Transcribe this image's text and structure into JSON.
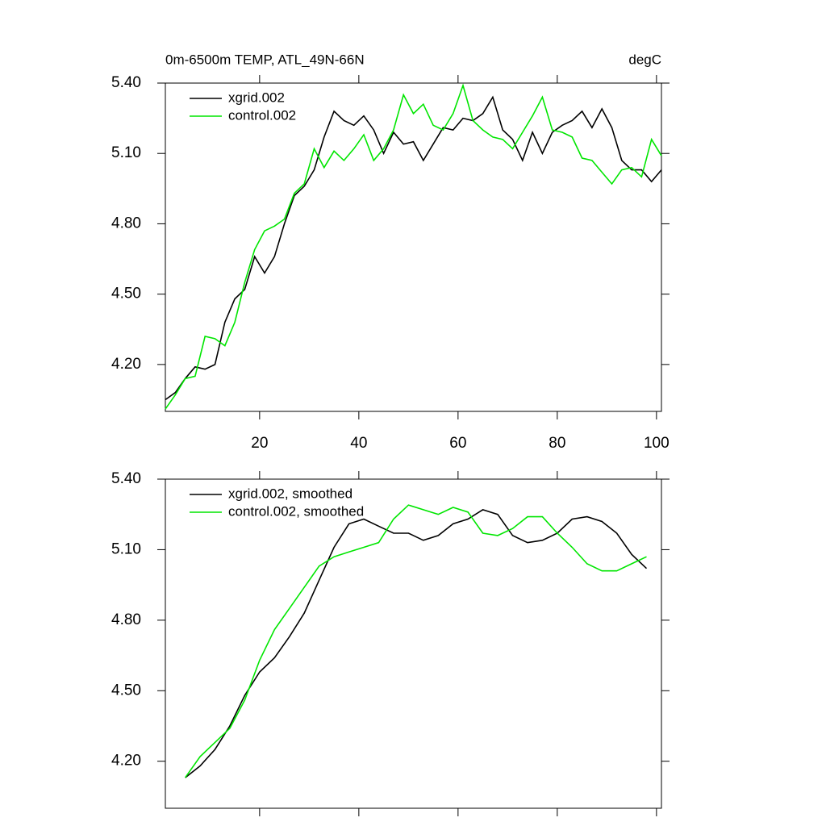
{
  "chart_data": [
    {
      "type": "line",
      "title": "0m-6500m TEMP, ATL_49N-66N",
      "units": "degC",
      "x": [
        1,
        3,
        5,
        7,
        9,
        11,
        13,
        15,
        17,
        19,
        21,
        23,
        25,
        27,
        29,
        31,
        33,
        35,
        37,
        39,
        41,
        43,
        45,
        47,
        49,
        51,
        53,
        55,
        57,
        59,
        61,
        63,
        65,
        67,
        69,
        71,
        73,
        75,
        77,
        79,
        81,
        83,
        85,
        87,
        89,
        91,
        93,
        95,
        97,
        99,
        101
      ],
      "series": [
        {
          "name": "xgrid.002",
          "color": "#000000",
          "values": [
            4.05,
            4.08,
            4.14,
            4.19,
            4.18,
            4.2,
            4.38,
            4.48,
            4.52,
            4.66,
            4.59,
            4.66,
            4.8,
            4.92,
            4.96,
            5.03,
            5.17,
            5.28,
            5.24,
            5.22,
            5.26,
            5.2,
            5.1,
            5.19,
            5.14,
            5.15,
            5.07,
            5.14,
            5.21,
            5.2,
            5.25,
            5.24,
            5.27,
            5.34,
            5.2,
            5.16,
            5.07,
            5.19,
            5.1,
            5.19,
            5.22,
            5.24,
            5.28,
            5.21,
            5.29,
            5.21,
            5.07,
            5.03,
            5.03,
            4.98,
            5.03
          ]
        },
        {
          "name": "control.002",
          "color": "#00e600",
          "values": [
            4.01,
            4.07,
            4.14,
            4.15,
            4.32,
            4.31,
            4.28,
            4.38,
            4.55,
            4.69,
            4.77,
            4.79,
            4.82,
            4.93,
            4.97,
            5.12,
            5.04,
            5.11,
            5.07,
            5.12,
            5.18,
            5.07,
            5.12,
            5.2,
            5.35,
            5.27,
            5.31,
            5.22,
            5.2,
            5.27,
            5.39,
            5.24,
            5.2,
            5.17,
            5.16,
            5.12,
            5.19,
            5.26,
            5.34,
            5.2,
            5.19,
            5.17,
            5.08,
            5.07,
            5.02,
            4.97,
            5.03,
            5.04,
            5.0,
            5.16,
            5.09
          ]
        }
      ],
      "xlim": [
        1,
        101
      ],
      "ylim": [
        4.0,
        5.4
      ],
      "xticks": [
        20,
        40,
        60,
        80,
        100
      ],
      "xtick_labels": true,
      "yticks": [
        {
          "value": 4.2,
          "label": "4.20"
        },
        {
          "value": 4.5,
          "label": "4.50"
        },
        {
          "value": 4.8,
          "label": "4.80"
        },
        {
          "value": 5.1,
          "label": "5.10"
        },
        {
          "value": 5.4,
          "label": "5.40"
        }
      ],
      "legend": "top-left"
    },
    {
      "type": "line",
      "x": [
        5,
        8,
        11,
        14,
        17,
        20,
        23,
        26,
        29,
        32,
        35,
        38,
        41,
        44,
        47,
        50,
        53,
        56,
        59,
        62,
        65,
        68,
        71,
        74,
        77,
        80,
        83,
        86,
        89,
        92,
        95,
        98
      ],
      "series": [
        {
          "name": "xgrid.002, smoothed",
          "color": "#000000",
          "values": [
            4.13,
            4.18,
            4.25,
            4.35,
            4.48,
            4.58,
            4.64,
            4.73,
            4.83,
            4.97,
            5.11,
            5.21,
            5.23,
            5.2,
            5.17,
            5.17,
            5.14,
            5.16,
            5.21,
            5.23,
            5.27,
            5.25,
            5.16,
            5.13,
            5.14,
            5.17,
            5.23,
            5.24,
            5.22,
            5.17,
            5.08,
            5.02
          ]
        },
        {
          "name": "control.002, smoothed",
          "color": "#00e600",
          "values": [
            4.13,
            4.22,
            4.28,
            4.34,
            4.46,
            4.63,
            4.76,
            4.85,
            4.94,
            5.03,
            5.07,
            5.09,
            5.11,
            5.13,
            5.23,
            5.29,
            5.27,
            5.25,
            5.28,
            5.26,
            5.17,
            5.16,
            5.19,
            5.24,
            5.24,
            5.17,
            5.11,
            5.04,
            5.01,
            5.01,
            5.04,
            5.07
          ]
        }
      ],
      "xlim": [
        1,
        101
      ],
      "ylim": [
        4.0,
        5.4
      ],
      "xticks": [
        20,
        40,
        60,
        80,
        100
      ],
      "xtick_labels": false,
      "yticks": [
        {
          "value": 4.2,
          "label": "4.20"
        },
        {
          "value": 4.5,
          "label": "4.50"
        },
        {
          "value": 4.8,
          "label": "4.80"
        },
        {
          "value": 5.1,
          "label": "5.10"
        },
        {
          "value": 5.4,
          "label": "5.40"
        }
      ],
      "legend": "top-left"
    }
  ]
}
